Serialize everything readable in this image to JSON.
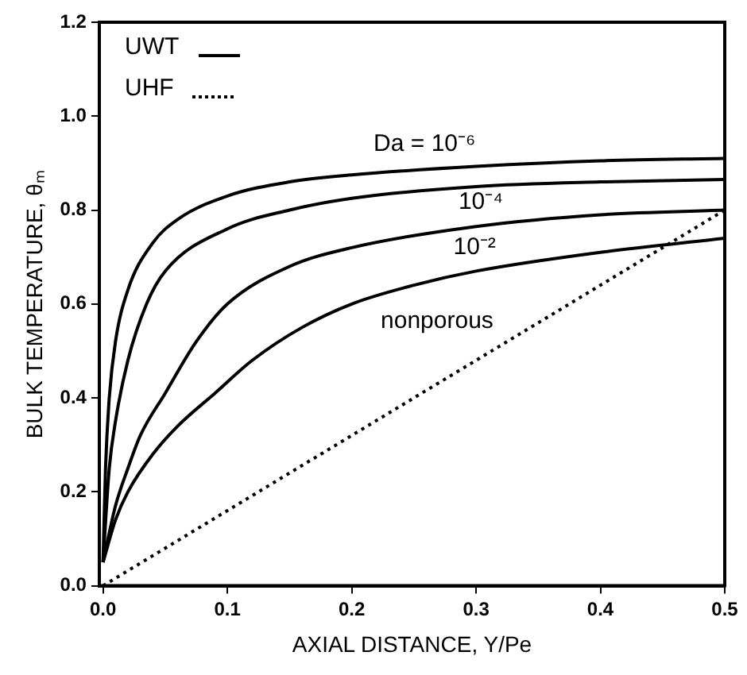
{
  "chart_data": {
    "type": "line",
    "xlabel": "AXIAL DISTANCE, Y/Pe",
    "ylabel": "BULK TEMPERATURE, θₘ",
    "xlim": [
      -0.003,
      0.5
    ],
    "ylim": [
      0,
      1.2
    ],
    "xticks": [
      {
        "value": 0,
        "label": "0.0"
      },
      {
        "value": 0.1,
        "label": "0.1"
      },
      {
        "value": 0.2,
        "label": "0.2"
      },
      {
        "value": 0.3,
        "label": "0.3"
      },
      {
        "value": 0.4,
        "label": "0.4"
      },
      {
        "value": 0.5,
        "label": "0.5"
      }
    ],
    "yticks": [
      {
        "value": 0,
        "label": "0.0"
      },
      {
        "value": 0.2,
        "label": "0.2"
      },
      {
        "value": 0.4,
        "label": "0.4"
      },
      {
        "value": 0.6,
        "label": "0.6"
      },
      {
        "value": 0.8,
        "label": "0.8"
      },
      {
        "value": 1.0,
        "label": "1.0"
      },
      {
        "value": 1.2,
        "label": "1.2"
      }
    ],
    "grid": false,
    "marker": "none",
    "series": [
      {
        "name": "Da = 10⁻⁶",
        "color": "#000000",
        "line_style": "solid",
        "x": [
          0,
          0.002,
          0.005,
          0.01,
          0.02,
          0.04,
          0.06,
          0.1,
          0.15,
          0.2,
          0.3,
          0.4,
          0.5
        ],
        "values": [
          0.05,
          0.25,
          0.4,
          0.52,
          0.63,
          0.73,
          0.78,
          0.83,
          0.86,
          0.875,
          0.893,
          0.905,
          0.91
        ]
      },
      {
        "name": "10⁻⁴",
        "color": "#000000",
        "line_style": "solid",
        "x": [
          0,
          0.005,
          0.01,
          0.02,
          0.035,
          0.05,
          0.1,
          0.15,
          0.2,
          0.3,
          0.4,
          0.5
        ],
        "values": [
          0.05,
          0.25,
          0.35,
          0.48,
          0.6,
          0.67,
          0.76,
          0.8,
          0.825,
          0.85,
          0.86,
          0.865
        ]
      },
      {
        "name": "10⁻²",
        "color": "#000000",
        "line_style": "solid",
        "x": [
          0,
          0.01,
          0.02,
          0.03,
          0.05,
          0.075,
          0.1,
          0.15,
          0.2,
          0.3,
          0.4,
          0.5
        ],
        "values": [
          0.05,
          0.17,
          0.25,
          0.32,
          0.41,
          0.52,
          0.6,
          0.68,
          0.72,
          0.765,
          0.79,
          0.8
        ]
      },
      {
        "name": "nonporous",
        "color": "#000000",
        "line_style": "solid",
        "x": [
          0,
          0.01,
          0.02,
          0.04,
          0.06,
          0.09,
          0.12,
          0.16,
          0.2,
          0.25,
          0.3,
          0.4,
          0.5
        ],
        "values": [
          0.05,
          0.14,
          0.2,
          0.28,
          0.34,
          0.41,
          0.48,
          0.55,
          0.6,
          0.64,
          0.67,
          0.71,
          0.74
        ]
      },
      {
        "color": "#000000",
        "line_style": "dotted",
        "x": [
          0,
          0.5
        ],
        "values": [
          0,
          0.8
        ]
      }
    ],
    "annotations": [
      "UWT",
      "UHF"
    ]
  }
}
